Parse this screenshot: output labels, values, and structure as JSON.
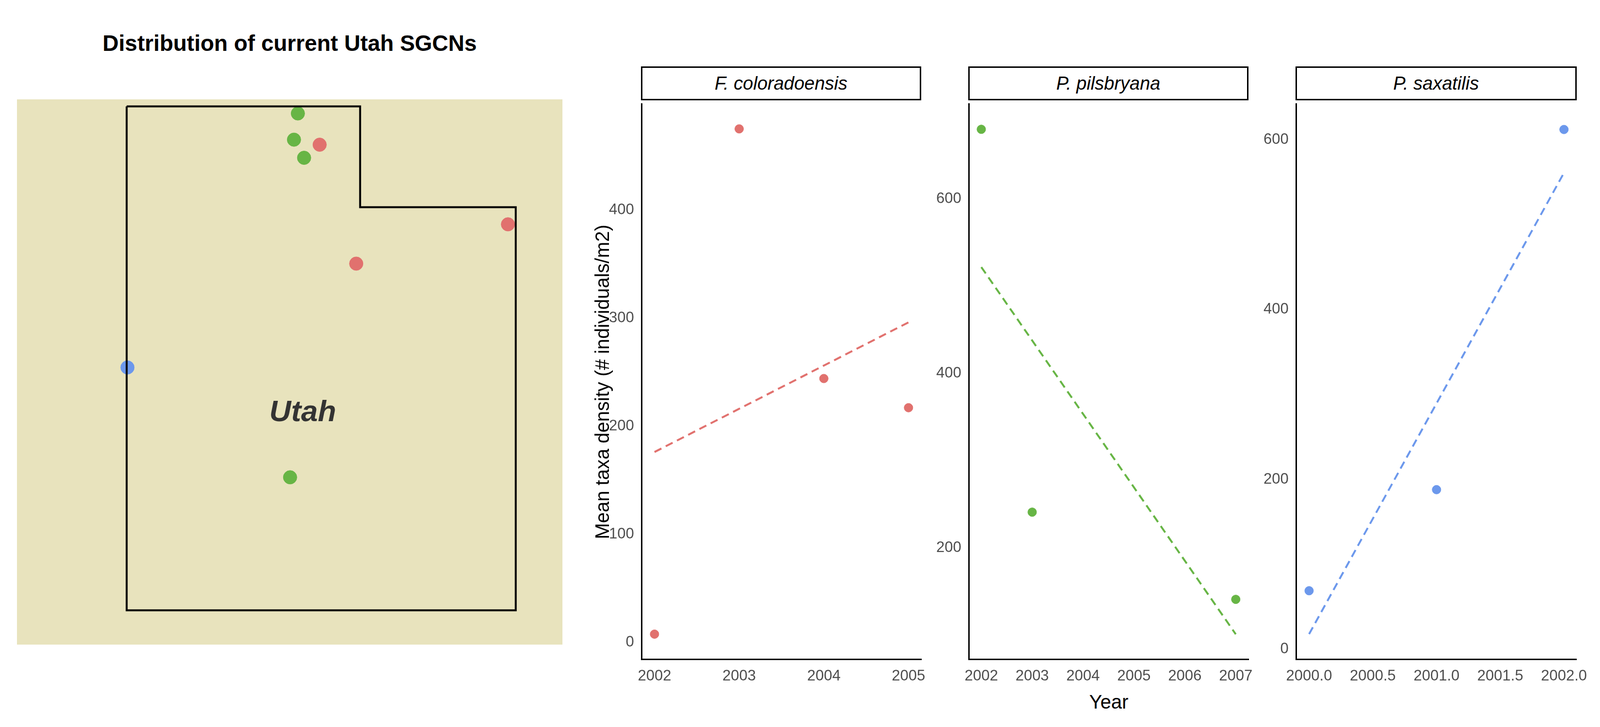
{
  "chart_data": [
    {
      "type": "map",
      "title": "Distribution of current Utah SGCNs",
      "annotation": "Utah",
      "xlim": [
        -115.46,
        -108.45
      ],
      "ylim": [
        36.66,
        42.07
      ],
      "tick_labels": false,
      "outline": {
        "x": [
          -114.05,
          -111.05,
          -111.05,
          -109.05,
          -109.05,
          -114.05,
          -114.05
        ],
        "y": [
          42.0,
          42.0,
          41.0,
          41.0,
          37.0,
          37.0,
          42.0
        ]
      },
      "series": [
        {
          "color": "#e1716e",
          "x": [
            -111.57,
            -109.15,
            -111.1
          ],
          "y": [
            41.62,
            40.83,
            40.44
          ]
        },
        {
          "color": "#67b545",
          "x": [
            -111.85,
            -111.9,
            -111.77,
            -111.95
          ],
          "y": [
            41.93,
            41.67,
            41.49,
            38.32
          ]
        },
        {
          "color": "#6c98ec",
          "x": [
            -114.04
          ],
          "y": [
            39.41
          ]
        }
      ]
    },
    {
      "type": "scatter",
      "title": "F. coloradoensis",
      "ylabel": "Mean taxa density (# individuals/m2)",
      "xlim": [
        2001.85,
        2005.15
      ],
      "xticks": [
        2002,
        2003,
        2004,
        2005
      ],
      "ylim": [
        -16,
        498
      ],
      "yticks": [
        0,
        100,
        200,
        300,
        400
      ],
      "series": [
        {
          "type": "scatter",
          "color": "#e1716e",
          "x": [
            2002,
            2003,
            2004,
            2005
          ],
          "values": [
            7.5,
            475,
            244,
            217
          ]
        },
        {
          "type": "line",
          "line_style": "dashed",
          "color": "#e1716e",
          "x": [
            2002,
            2005
          ],
          "values": [
            176,
            296
          ]
        }
      ]
    },
    {
      "type": "scatter",
      "title": "P. pilsbryana",
      "xlabel": "Year",
      "xlim": [
        2001.76,
        2007.25
      ],
      "xticks": [
        2002,
        2003,
        2004,
        2005,
        2006,
        2007
      ],
      "ylim": [
        72,
        709
      ],
      "yticks": [
        200,
        400,
        600
      ],
      "series": [
        {
          "type": "scatter",
          "color": "#67b545",
          "x": [
            2002,
            2003,
            2007
          ],
          "values": [
            680,
            241,
            141
          ]
        },
        {
          "type": "line",
          "line_style": "dashed",
          "color": "#67b545",
          "x": [
            2002,
            2007
          ],
          "values": [
            522,
            101
          ]
        }
      ]
    },
    {
      "type": "scatter",
      "title": "P. saxatilis",
      "xlim": [
        1999.9,
        2002.1
      ],
      "xticks": [
        {
          "value": 2000,
          "label": "2000.0"
        },
        {
          "value": 2000.5,
          "label": "2000.5"
        },
        {
          "value": 2001,
          "label": "2001.0"
        },
        {
          "value": 2001.5,
          "label": "2001.5"
        },
        {
          "value": 2002,
          "label": "2002.0"
        }
      ],
      "ylim": [
        -12,
        642
      ],
      "yticks": [
        0,
        200,
        400,
        600
      ],
      "series": [
        {
          "type": "scatter",
          "color": "#6c98ec",
          "x": [
            2000,
            2001,
            2002
          ],
          "values": [
            69,
            188,
            612
          ]
        },
        {
          "type": "line",
          "line_style": "dashed",
          "color": "#6c98ec",
          "x": [
            2000,
            2002
          ],
          "values": [
            18,
            561
          ]
        }
      ]
    }
  ]
}
